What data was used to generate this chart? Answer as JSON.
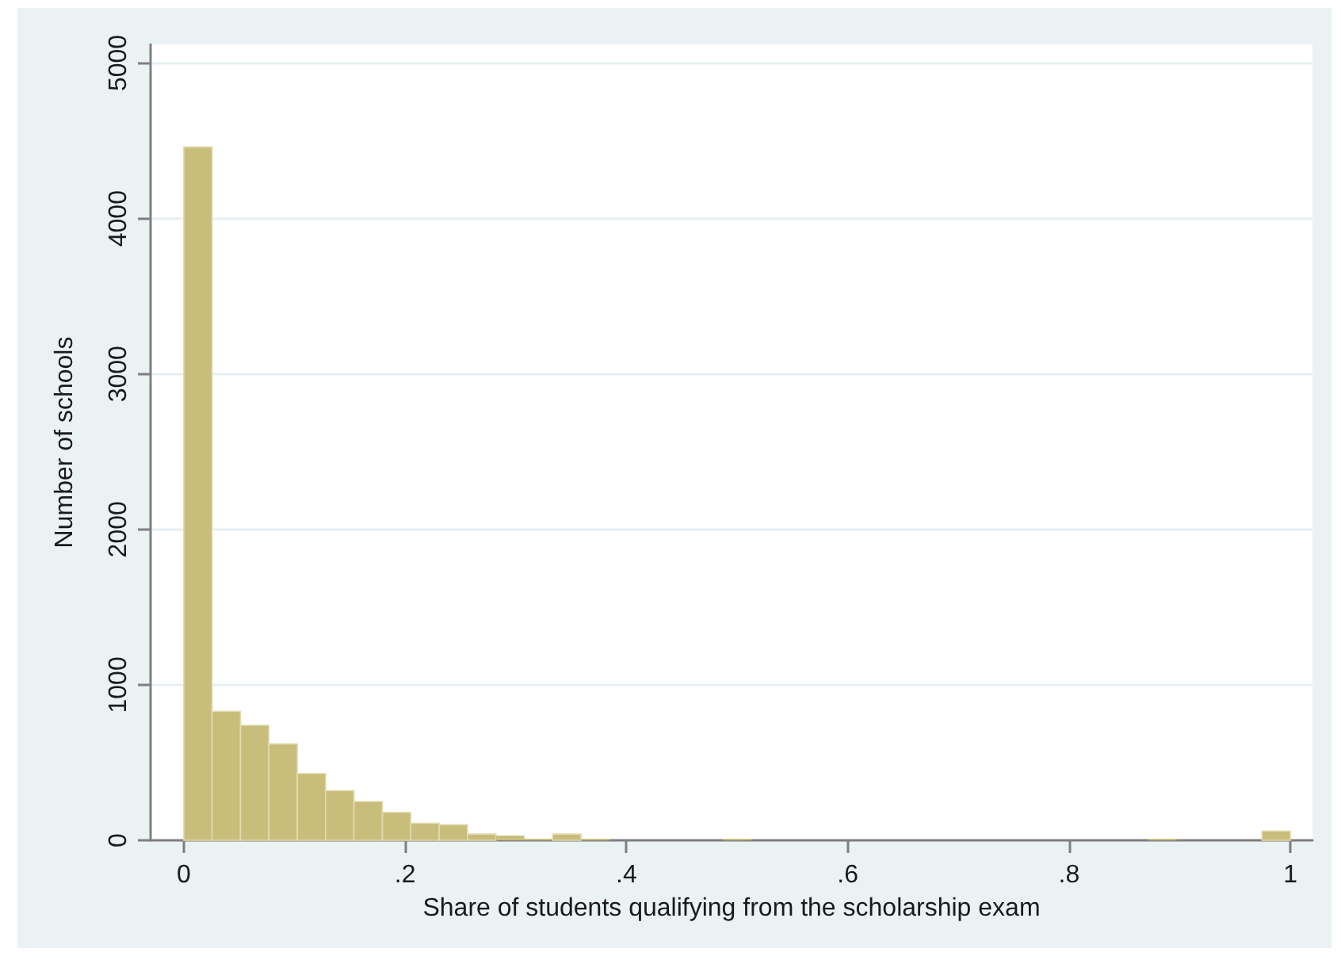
{
  "chart_data": {
    "type": "histogram",
    "xlabel": "Share of students qualifying from the scholarship exam",
    "ylabel": "Number of schools",
    "bins": [
      0,
      0.0256,
      0.0513,
      0.0769,
      0.1026,
      0.1282,
      0.1538,
      0.1795,
      0.2051,
      0.2308,
      0.2564,
      0.2821,
      0.3077,
      0.3333,
      0.359,
      0.3846,
      0.4103,
      0.4359,
      0.4615,
      0.4872,
      0.5128,
      0.5385,
      0.5641,
      0.5897,
      0.6154,
      0.641,
      0.6667,
      0.6923,
      0.7179,
      0.7436,
      0.7692,
      0.7949,
      0.8205,
      0.8462,
      0.8718,
      0.8974,
      0.9231,
      0.9487,
      0.9744,
      1
    ],
    "values": [
      4460,
      830,
      740,
      620,
      430,
      320,
      250,
      180,
      110,
      100,
      40,
      30,
      10,
      40,
      10,
      0,
      0,
      0,
      0,
      10,
      0,
      0,
      0,
      0,
      0,
      0,
      0,
      0,
      0,
      0,
      0,
      0,
      0,
      0,
      10,
      0,
      0,
      0,
      60
    ],
    "color": "#c8bd7b",
    "xlim": [
      -0.03,
      1.02
    ],
    "ylim": [
      0,
      5120
    ],
    "xticks": [
      0,
      {
        "value": 0.2,
        "label": ".2"
      },
      {
        "value": 0.4,
        "label": ".4"
      },
      {
        "value": 0.6,
        "label": ".6"
      },
      {
        "value": 0.8,
        "label": ".8"
      },
      1
    ],
    "yticks": [
      0,
      1000,
      2000,
      3000,
      4000,
      5000
    ],
    "grid": "y"
  }
}
